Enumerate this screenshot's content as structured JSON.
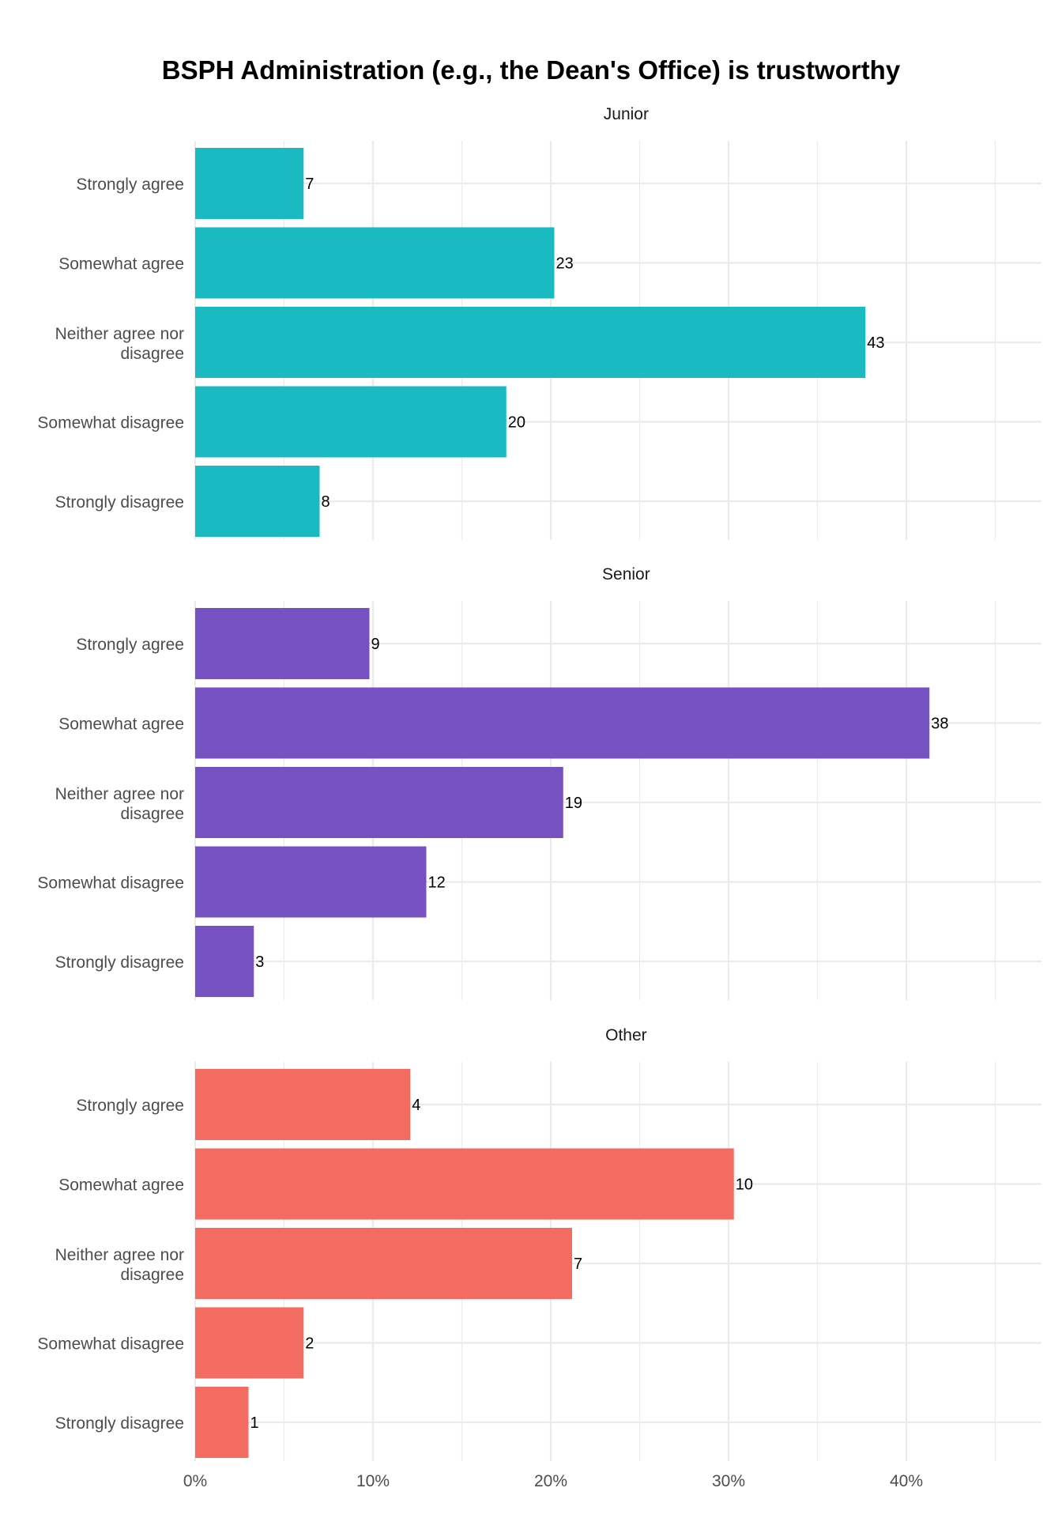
{
  "chart_data": {
    "type": "bar",
    "orientation": "horizontal",
    "title": "BSPH Administration (e.g., the Dean's Office) is trustworthy",
    "xlabel": "",
    "ylabel": "",
    "xlim": [
      0,
      0.475
    ],
    "x_ticks": [
      0,
      0.1,
      0.2,
      0.3,
      0.4
    ],
    "x_tick_labels": [
      "0%",
      "10%",
      "20%",
      "30%",
      "40%"
    ],
    "grid": true,
    "categories": [
      "Strongly agree",
      "Somewhat agree",
      "Neither agree nor disagree",
      "Somewhat disagree",
      "Strongly disagree"
    ],
    "facets": [
      {
        "name": "Junior",
        "color": "#1ABAC2",
        "values": [
          0.061,
          0.202,
          0.377,
          0.175,
          0.07
        ],
        "labels": [
          "7",
          "23",
          "43",
          "20",
          "8"
        ]
      },
      {
        "name": "Senior",
        "color": "#7651C1",
        "values": [
          0.098,
          0.413,
          0.207,
          0.13,
          0.033
        ],
        "labels": [
          "9",
          "38",
          "19",
          "12",
          "3"
        ]
      },
      {
        "name": "Other",
        "color": "#F46B61",
        "values": [
          0.121,
          0.303,
          0.212,
          0.061,
          0.03
        ],
        "labels": [
          "4",
          "10",
          "7",
          "2",
          "1"
        ]
      }
    ]
  }
}
